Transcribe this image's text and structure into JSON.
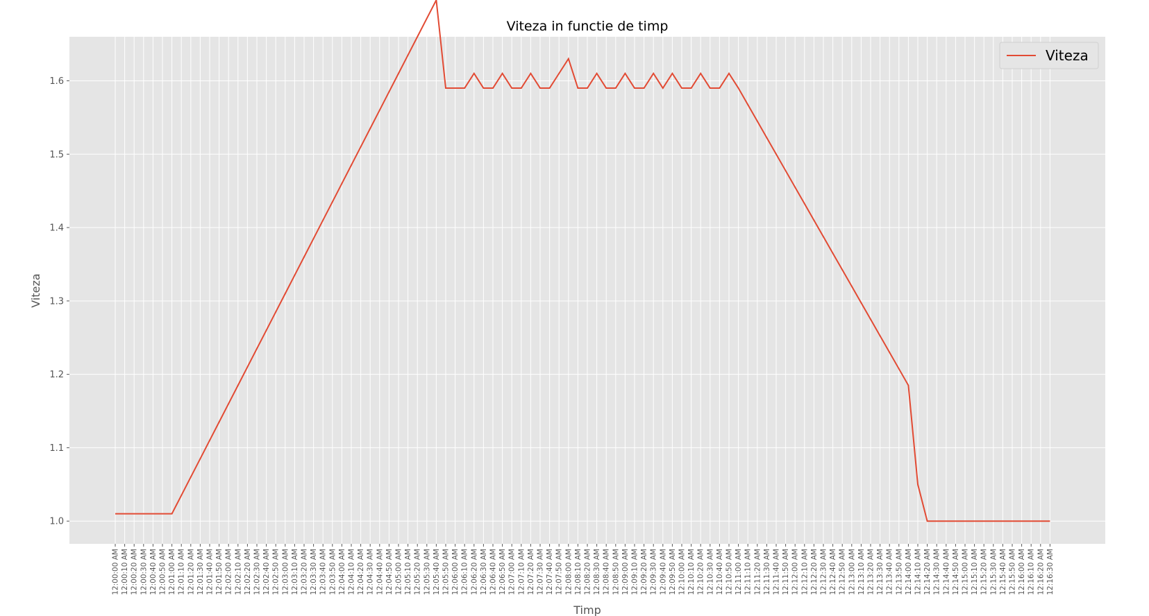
{
  "chart_data": {
    "type": "line",
    "title": "Viteza in functie de timp",
    "xlabel": "Timp",
    "ylabel": "Viteza",
    "ylim": [
      0.969,
      1.66
    ],
    "yticks": [
      "1.0",
      "1.1",
      "1.2",
      "1.3",
      "1.4",
      "1.5",
      "1.6"
    ],
    "ytick_values": [
      1.0,
      1.1,
      1.2,
      1.3,
      1.4,
      1.5,
      1.6
    ],
    "grid": true,
    "legend_position": "top-right",
    "x": [
      "12:00:00 AM",
      "12:00:10 AM",
      "12:00:20 AM",
      "12:00:30 AM",
      "12:00:40 AM",
      "12:00:50 AM",
      "12:01:00 AM",
      "12:01:10 AM",
      "12:01:20 AM",
      "12:01:30 AM",
      "12:01:40 AM",
      "12:01:50 AM",
      "12:02:00 AM",
      "12:02:10 AM",
      "12:02:20 AM",
      "12:02:30 AM",
      "12:02:40 AM",
      "12:02:50 AM",
      "12:03:00 AM",
      "12:03:10 AM",
      "12:03:20 AM",
      "12:03:30 AM",
      "12:03:40 AM",
      "12:03:50 AM",
      "12:04:00 AM",
      "12:04:10 AM",
      "12:04:20 AM",
      "12:04:30 AM",
      "12:04:40 AM",
      "12:04:50 AM",
      "12:05:00 AM",
      "12:05:10 AM",
      "12:05:20 AM",
      "12:05:30 AM",
      "12:05:40 AM",
      "12:05:50 AM",
      "12:06:00 AM",
      "12:06:10 AM",
      "12:06:20 AM",
      "12:06:30 AM",
      "12:06:40 AM",
      "12:06:50 AM",
      "12:07:00 AM",
      "12:07:10 AM",
      "12:07:20 AM",
      "12:07:30 AM",
      "12:07:40 AM",
      "12:07:50 AM",
      "12:08:00 AM",
      "12:08:10 AM",
      "12:08:20 AM",
      "12:08:30 AM",
      "12:08:40 AM",
      "12:08:50 AM",
      "12:09:00 AM",
      "12:09:10 AM",
      "12:09:20 AM",
      "12:09:30 AM",
      "12:09:40 AM",
      "12:09:50 AM",
      "12:10:00 AM",
      "12:10:10 AM",
      "12:10:20 AM",
      "12:10:30 AM",
      "12:10:40 AM",
      "12:10:50 AM",
      "12:11:00 AM",
      "12:11:10 AM",
      "12:11:20 AM",
      "12:11:30 AM",
      "12:11:40 AM",
      "12:11:50 AM",
      "12:12:00 AM",
      "12:12:10 AM",
      "12:12:20 AM",
      "12:12:30 AM",
      "12:12:40 AM",
      "12:12:50 AM",
      "12:13:00 AM",
      "12:13:10 AM",
      "12:13:20 AM",
      "12:13:30 AM",
      "12:13:40 AM",
      "12:13:50 AM",
      "12:14:00 AM",
      "12:14:10 AM",
      "12:14:20 AM",
      "12:14:30 AM",
      "12:14:40 AM",
      "12:14:50 AM",
      "12:15:00 AM",
      "12:15:10 AM",
      "12:15:20 AM",
      "12:15:30 AM",
      "12:15:40 AM",
      "12:15:50 AM",
      "12:16:00 AM",
      "12:16:10 AM",
      "12:16:20 AM",
      "12:16:30 AM"
    ],
    "series": [
      {
        "name": "Viteza",
        "color": "#E24A33",
        "values": [
          1.01,
          1.01,
          1.01,
          1.01,
          1.01,
          1.01,
          1.01,
          1.035,
          1.06,
          1.085,
          1.11,
          1.135,
          1.16,
          1.185,
          1.21,
          1.235,
          1.26,
          1.285,
          1.31,
          1.335,
          1.36,
          1.385,
          1.41,
          1.435,
          1.46,
          1.485,
          1.51,
          1.535,
          1.56,
          1.585,
          1.61,
          1.635,
          1.66,
          1.685,
          1.71,
          1.59,
          1.59,
          1.59,
          1.61,
          1.59,
          1.59,
          1.61,
          1.59,
          1.59,
          1.61,
          1.59,
          1.59,
          1.61,
          1.63,
          1.59,
          1.59,
          1.61,
          1.59,
          1.59,
          1.61,
          1.59,
          1.59,
          1.61,
          1.59,
          1.61,
          1.59,
          1.59,
          1.61,
          1.59,
          1.59,
          1.61,
          1.59,
          1.5675,
          1.545,
          1.5225,
          1.5,
          1.4775,
          1.455,
          1.4325,
          1.41,
          1.3875,
          1.365,
          1.3425,
          1.32,
          1.2975,
          1.275,
          1.2525,
          1.23,
          1.2075,
          1.185,
          1.05,
          1.0,
          1.0,
          1.0,
          1.0,
          1.0,
          1.0,
          1.0,
          1.0,
          1.0,
          1.0,
          1.0,
          1.0,
          1.0,
          1.0
        ]
      }
    ]
  },
  "legend": {
    "label": "Viteza"
  }
}
